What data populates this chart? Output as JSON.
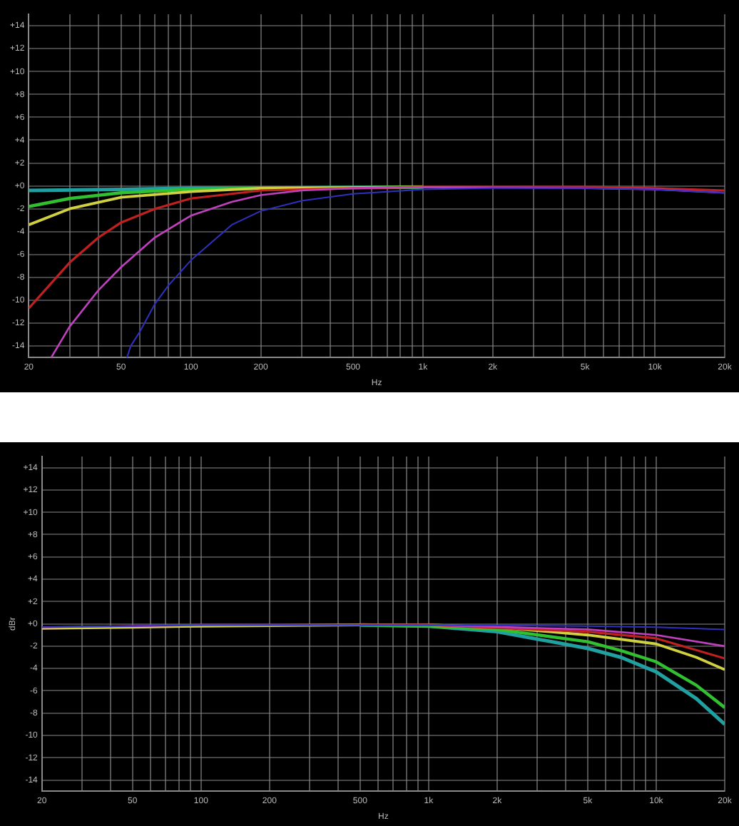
{
  "chart_data": [
    {
      "type": "line",
      "xlabel": "Hz",
      "log": "x",
      "grid": true,
      "legend": false,
      "marker": "none",
      "xlim": [
        20,
        20000
      ],
      "ylim": [
        -15,
        15
      ],
      "xticks": [
        20,
        {
          "value": 30,
          "label": null
        },
        {
          "value": 40,
          "label": null
        },
        50,
        {
          "value": 60,
          "label": null
        },
        {
          "value": 70,
          "label": null
        },
        {
          "value": 80,
          "label": null
        },
        {
          "value": 90,
          "label": null
        },
        100,
        200,
        {
          "value": 300,
          "label": null
        },
        {
          "value": 400,
          "label": null
        },
        500,
        {
          "value": 600,
          "label": null
        },
        {
          "value": 700,
          "label": null
        },
        {
          "value": 800,
          "label": null
        },
        {
          "value": 900,
          "label": null
        },
        {
          "value": 1000,
          "label": "1k"
        },
        {
          "value": 2000,
          "label": "2k"
        },
        {
          "value": 3000,
          "label": null
        },
        {
          "value": 4000,
          "label": null
        },
        {
          "value": 5000,
          "label": "5k"
        },
        {
          "value": 6000,
          "label": null
        },
        {
          "value": 7000,
          "label": null
        },
        {
          "value": 8000,
          "label": null
        },
        {
          "value": 9000,
          "label": null
        },
        {
          "value": 10000,
          "label": "10k"
        },
        {
          "value": 20000,
          "label": "20k"
        }
      ],
      "yticks": [
        {
          "value": 14,
          "label": "+14"
        },
        {
          "value": 12,
          "label": "+12"
        },
        {
          "value": 10,
          "label": "+10"
        },
        {
          "value": 8,
          "label": "+8"
        },
        {
          "value": 6,
          "label": "+6"
        },
        {
          "value": 4,
          "label": "+4"
        },
        {
          "value": 2,
          "label": "+2"
        },
        {
          "value": 0,
          "label": "+0"
        },
        -2,
        -4,
        -6,
        -8,
        -10,
        -12,
        -14
      ],
      "series": [
        {
          "color": "#20a0a0",
          "x": [
            20,
            50,
            100,
            200,
            1000
          ],
          "values": [
            -0.4,
            -0.3,
            -0.2,
            -0.2,
            -0.1
          ]
        },
        {
          "color": "#30c030",
          "x": [
            20,
            30,
            50,
            100,
            200,
            1000
          ],
          "values": [
            -1.8,
            -1.1,
            -0.6,
            -0.3,
            -0.2,
            -0.1
          ]
        },
        {
          "color": "#d0d040",
          "x": [
            20,
            30,
            50,
            100,
            200,
            1000
          ],
          "values": [
            -3.4,
            -2.0,
            -1.0,
            -0.5,
            -0.2,
            -0.1
          ]
        },
        {
          "color": "#c02020",
          "x": [
            20,
            30,
            40,
            50,
            70,
            100,
            200,
            500,
            1000,
            5000,
            10000,
            20000
          ],
          "values": [
            -10.7,
            -6.7,
            -4.5,
            -3.2,
            -2.0,
            -1.1,
            -0.4,
            -0.2,
            -0.1,
            -0.1,
            -0.2,
            -0.4
          ]
        },
        {
          "color": "#c040c0",
          "x": [
            25,
            30,
            40,
            50,
            70,
            100,
            150,
            200,
            300,
            500,
            1000,
            5000,
            10000,
            20000
          ],
          "values": [
            -15,
            -12.3,
            -9.1,
            -7.1,
            -4.5,
            -2.6,
            -1.4,
            -0.8,
            -0.4,
            -0.2,
            -0.1,
            -0.2,
            -0.3,
            -0.6
          ]
        },
        {
          "color": "#3030c0",
          "x": [
            53,
            55,
            60,
            70,
            80,
            100,
            150,
            200,
            300,
            500,
            1000,
            2000,
            5000,
            10000,
            20000
          ],
          "values": [
            -15,
            -14,
            -12.8,
            -10.3,
            -8.7,
            -6.5,
            -3.4,
            -2.2,
            -1.3,
            -0.7,
            -0.3,
            -0.2,
            -0.2,
            -0.3,
            -0.6
          ]
        }
      ]
    },
    {
      "type": "line",
      "xlabel": "Hz",
      "ylabel": "dBr",
      "log": "x",
      "grid": true,
      "legend": false,
      "marker": "none",
      "xlim": [
        20,
        20000
      ],
      "ylim": [
        -15,
        15
      ],
      "xticks": [
        20,
        {
          "value": 30,
          "label": null
        },
        {
          "value": 40,
          "label": null
        },
        50,
        {
          "value": 60,
          "label": null
        },
        {
          "value": 70,
          "label": null
        },
        {
          "value": 80,
          "label": null
        },
        {
          "value": 90,
          "label": null
        },
        100,
        200,
        {
          "value": 300,
          "label": null
        },
        {
          "value": 400,
          "label": null
        },
        500,
        {
          "value": 600,
          "label": null
        },
        {
          "value": 700,
          "label": null
        },
        {
          "value": 800,
          "label": null
        },
        {
          "value": 900,
          "label": null
        },
        {
          "value": 1000,
          "label": "1k"
        },
        {
          "value": 2000,
          "label": "2k"
        },
        {
          "value": 3000,
          "label": null
        },
        {
          "value": 4000,
          "label": null
        },
        {
          "value": 5000,
          "label": "5k"
        },
        {
          "value": 6000,
          "label": null
        },
        {
          "value": 7000,
          "label": null
        },
        {
          "value": 8000,
          "label": null
        },
        {
          "value": 9000,
          "label": null
        },
        {
          "value": 10000,
          "label": "10k"
        },
        {
          "value": 20000,
          "label": "20k"
        }
      ],
      "yticks": [
        {
          "value": 14,
          "label": "+14"
        },
        {
          "value": 12,
          "label": "+12"
        },
        {
          "value": 10,
          "label": "+10"
        },
        {
          "value": 8,
          "label": "+8"
        },
        {
          "value": 6,
          "label": "+6"
        },
        {
          "value": 4,
          "label": "+4"
        },
        {
          "value": 2,
          "label": "+2"
        },
        {
          "value": 0,
          "label": "+0"
        },
        -2,
        -4,
        -6,
        -8,
        -10,
        -12,
        -14
      ],
      "series": [
        {
          "color": "#20a0a0",
          "x": [
            500,
            1000,
            2000,
            5000,
            7000,
            10000,
            15000,
            20000
          ],
          "values": [
            -0.1,
            -0.2,
            -0.7,
            -2.2,
            -3.0,
            -4.3,
            -6.7,
            -9.0
          ]
        },
        {
          "color": "#30c030",
          "x": [
            500,
            1000,
            2000,
            5000,
            7000,
            10000,
            15000,
            20000
          ],
          "values": [
            -0.1,
            -0.2,
            -0.5,
            -1.6,
            -2.4,
            -3.4,
            -5.5,
            -7.5
          ]
        },
        {
          "color": "#d0d040",
          "x": [
            20,
            50,
            100,
            500,
            1000,
            2000,
            5000,
            10000,
            15000,
            20000
          ],
          "values": [
            -0.4,
            -0.3,
            -0.2,
            -0.1,
            -0.1,
            -0.3,
            -1.0,
            -1.8,
            -3.0,
            -4.1
          ]
        },
        {
          "color": "#c02020",
          "x": [
            500,
            1000,
            5000,
            10000,
            20000
          ],
          "values": [
            -0.1,
            -0.1,
            -0.7,
            -1.3,
            -3.1
          ]
        },
        {
          "color": "#c040c0",
          "x": [
            20,
            50,
            100,
            500,
            1000,
            5000,
            10000,
            20000
          ],
          "values": [
            -0.3,
            -0.2,
            -0.1,
            -0.1,
            -0.1,
            -0.5,
            -1.0,
            -2.0
          ]
        },
        {
          "color": "#3030c0",
          "x": [
            20,
            50,
            100,
            500,
            1000,
            5000,
            10000,
            20000
          ],
          "values": [
            -0.3,
            -0.2,
            -0.1,
            -0.1,
            -0.1,
            -0.2,
            -0.3,
            -0.5
          ]
        }
      ]
    }
  ]
}
